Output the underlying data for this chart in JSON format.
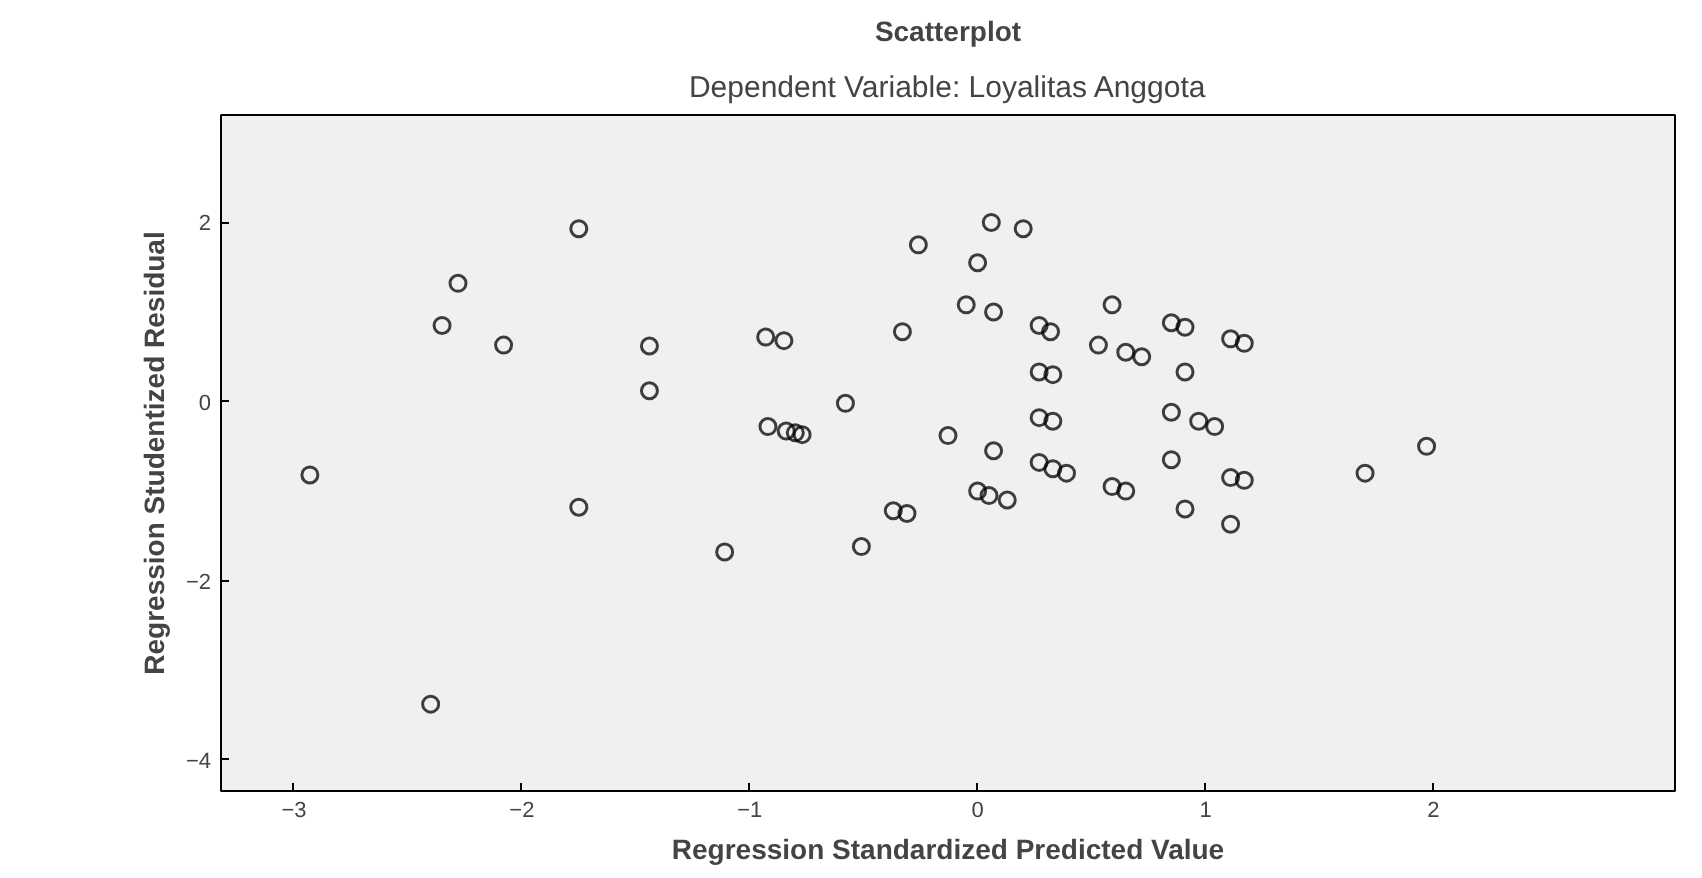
{
  "chart_data": {
    "type": "scatter",
    "title": "Scatterplot",
    "subtitle": "Dependent Variable: Loyalitas Anggota",
    "xlabel": "Regression Standardized Predicted Value",
    "ylabel": "Regression Studentized Residual",
    "x": [
      -2.93,
      -2.4,
      -2.35,
      -2.28,
      -2.08,
      -1.75,
      -1.75,
      -1.44,
      -1.44,
      -1.11,
      -0.93,
      -0.92,
      -0.85,
      -0.84,
      -0.8,
      -0.77,
      -0.58,
      -0.51,
      -0.37,
      -0.31,
      -0.33,
      -0.26,
      -0.13,
      -0.05,
      0.0,
      0.0,
      0.05,
      0.06,
      0.07,
      0.07,
      0.13,
      0.2,
      0.27,
      0.27,
      0.27,
      0.27,
      0.32,
      0.33,
      0.33,
      0.33,
      0.39,
      0.53,
      0.59,
      0.59,
      0.65,
      0.65,
      0.72,
      0.85,
      0.85,
      0.85,
      0.91,
      0.91,
      0.91,
      0.97,
      1.04,
      1.11,
      1.11,
      1.11,
      1.17,
      1.17,
      1.7,
      1.97
    ],
    "series": [
      {
        "color": "#000000",
        "values": [
          -0.82,
          -3.38,
          0.85,
          1.32,
          0.63,
          1.93,
          -1.18,
          0.62,
          0.12,
          -1.68,
          0.72,
          -0.28,
          0.68,
          -0.33,
          -0.35,
          -0.37,
          -0.02,
          -1.62,
          -1.22,
          -1.25,
          0.78,
          1.75,
          -0.38,
          1.08,
          1.55,
          -1.0,
          -1.05,
          2.0,
          1.0,
          -0.55,
          -1.1,
          1.93,
          0.85,
          0.33,
          -0.18,
          -0.68,
          0.78,
          0.3,
          -0.22,
          -0.75,
          -0.8,
          0.63,
          1.08,
          -0.95,
          0.55,
          -1.0,
          0.5,
          0.88,
          -0.12,
          -0.65,
          0.83,
          0.33,
          -1.2,
          -0.22,
          -0.28,
          0.7,
          -0.85,
          -1.37,
          0.65,
          -0.88,
          -0.8,
          -0.5
        ]
      }
    ],
    "xlim": [
      -3.32,
      3.06
    ],
    "ylim": [
      -4.35,
      3.2
    ],
    "xticks": [
      -3,
      -2,
      -1,
      0,
      1,
      2
    ],
    "yticks": [
      -4,
      -2,
      0,
      2
    ],
    "marker": "circle",
    "grid": false
  }
}
